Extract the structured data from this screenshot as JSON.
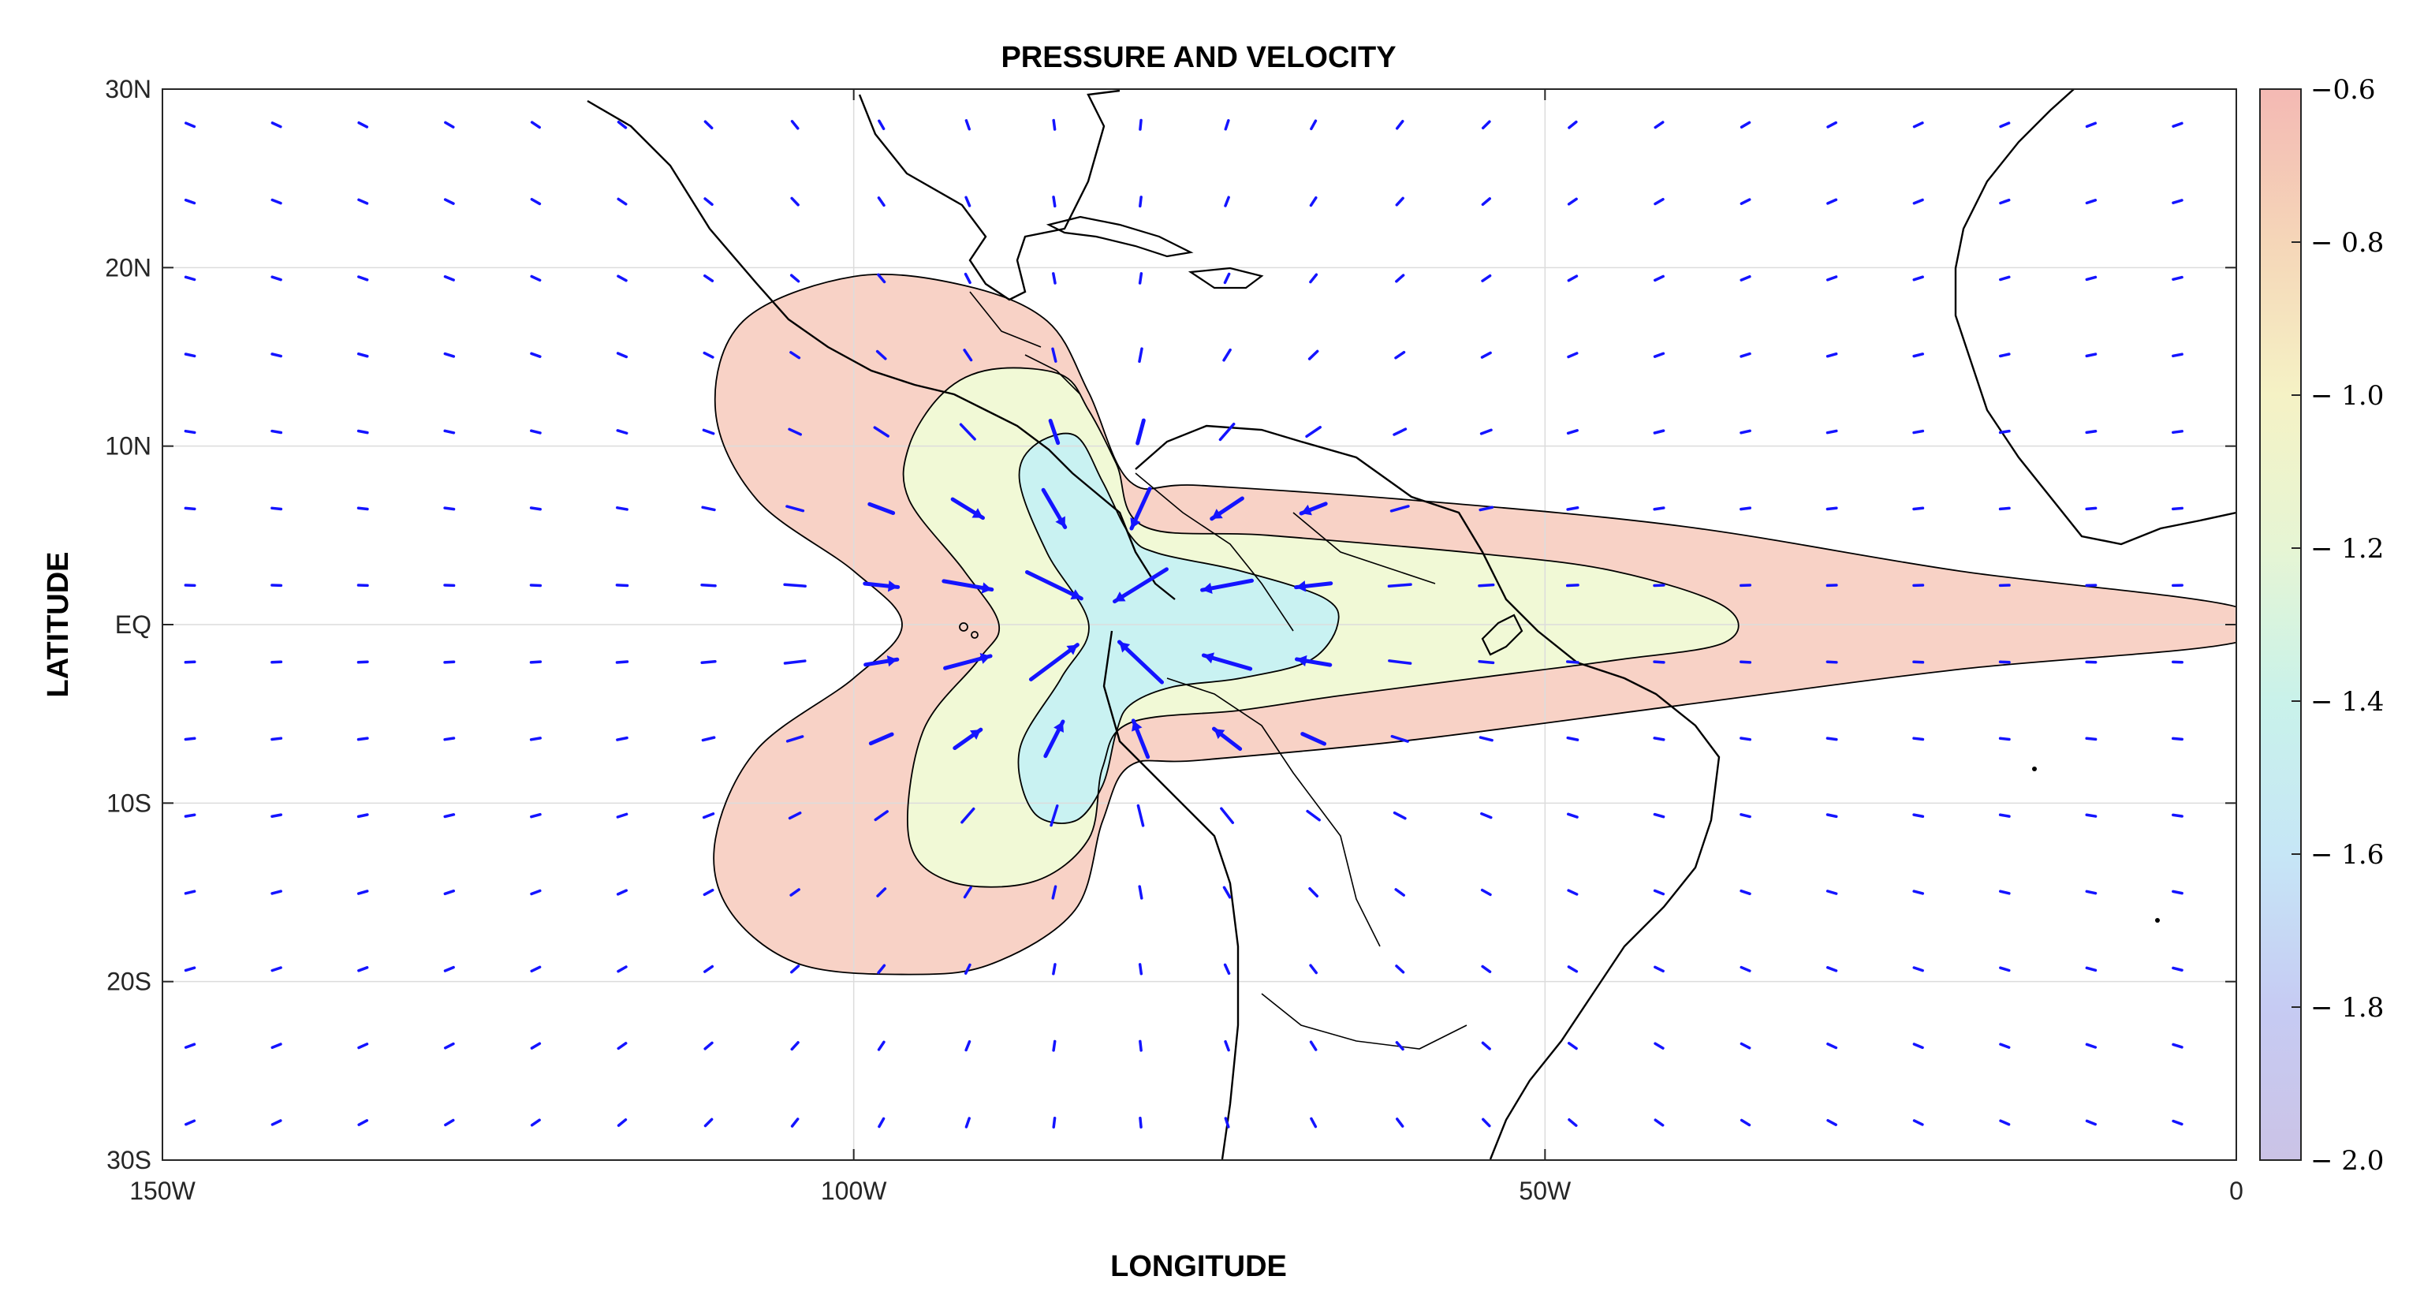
{
  "chart_data": {
    "type": "contour",
    "title": "PRESSURE AND VELOCITY",
    "xlabel": "LONGITUDE",
    "ylabel": "LATITUDE",
    "xlim": [
      -150,
      0
    ],
    "ylim": [
      -30,
      30
    ],
    "grid": true,
    "x_ticks": [
      {
        "value": -150,
        "label": "150W"
      },
      {
        "value": -100,
        "label": "100W"
      },
      {
        "value": -50,
        "label": "50W"
      },
      {
        "value": 0,
        "label": "0"
      }
    ],
    "y_ticks": [
      {
        "value": 30,
        "label": "30N"
      },
      {
        "value": 20,
        "label": "20N"
      },
      {
        "value": 10,
        "label": "10N"
      },
      {
        "value": 0,
        "label": "EQ"
      },
      {
        "value": -10,
        "label": "10S"
      },
      {
        "value": -20,
        "label": "20S"
      },
      {
        "value": -30,
        "label": "30S"
      }
    ],
    "colorbar": {
      "range": [
        -2.0,
        -0.6
      ],
      "ticks": [
        {
          "value": -0.6,
          "label": "−0.6"
        },
        {
          "value": -0.8,
          "label": "− 0.8"
        },
        {
          "value": -1.0,
          "label": "− 1.0"
        },
        {
          "value": -1.2,
          "label": "− 1.2"
        },
        {
          "value": -1.4,
          "label": "− 1.4"
        },
        {
          "value": -1.6,
          "label": "− 1.6"
        },
        {
          "value": -1.8,
          "label": "− 1.8"
        },
        {
          "value": -2.0,
          "label": "− 2.0"
        }
      ],
      "colors": [
        "#f4b9b4",
        "#f5d6b8",
        "#f5f2c5",
        "#e6f5d4",
        "#c9f2ea",
        "#c6e6f6",
        "#c6cbf3",
        "#cbc3e6"
      ]
    },
    "contours": [
      {
        "level": -0.9,
        "fill": "#f8d2c6",
        "polygon": [
          [
            -108,
            17
          ],
          [
            -100,
            19.5
          ],
          [
            -92,
            19
          ],
          [
            -86,
            17
          ],
          [
            -83,
            13
          ],
          [
            -80,
            8
          ],
          [
            -75,
            7.8
          ],
          [
            -60,
            7
          ],
          [
            -40,
            5.5
          ],
          [
            -20,
            3
          ],
          [
            0,
            1
          ],
          [
            0,
            -1
          ],
          [
            -20,
            -2.5
          ],
          [
            -40,
            -4.5
          ],
          [
            -60,
            -6.5
          ],
          [
            -75,
            -7.6
          ],
          [
            -80,
            -7.9
          ],
          [
            -82,
            -11
          ],
          [
            -84,
            -16
          ],
          [
            -90,
            -19
          ],
          [
            -96,
            -19.6
          ],
          [
            -104,
            -19
          ],
          [
            -109,
            -16
          ],
          [
            -110,
            -12
          ],
          [
            -107,
            -7
          ],
          [
            -100,
            -3
          ],
          [
            -96.5,
            0
          ],
          [
            -100,
            3
          ],
          [
            -107,
            7
          ],
          [
            -110,
            12
          ]
        ]
      },
      {
        "level": -1.2,
        "fill": "#f1f9d6",
        "polygon": [
          [
            -93.5,
            13
          ],
          [
            -90,
            14.3
          ],
          [
            -85,
            14
          ],
          [
            -83,
            12
          ],
          [
            -81,
            9
          ],
          [
            -79,
            5.5
          ],
          [
            -70,
            5
          ],
          [
            -55,
            4
          ],
          [
            -45,
            3
          ],
          [
            -37,
            1
          ],
          [
            -37,
            -1
          ],
          [
            -45,
            -2
          ],
          [
            -55,
            -3
          ],
          [
            -65,
            -4
          ],
          [
            -72,
            -4.8
          ],
          [
            -80,
            -5.5
          ],
          [
            -82,
            -8
          ],
          [
            -83,
            -12
          ],
          [
            -87,
            -14.4
          ],
          [
            -93,
            -14.4
          ],
          [
            -96,
            -12
          ],
          [
            -95,
            -6
          ],
          [
            -91,
            -2
          ],
          [
            -89.5,
            0
          ],
          [
            -92,
            3
          ],
          [
            -96,
            7
          ],
          [
            -96,
            10
          ]
        ]
      },
      {
        "level": -1.5,
        "fill": "#c9f2f2",
        "polygon": [
          [
            -87,
            10
          ],
          [
            -84,
            10.6
          ],
          [
            -82,
            8
          ],
          [
            -80,
            5
          ],
          [
            -78,
            4
          ],
          [
            -72,
            3
          ],
          [
            -66,
            1.5
          ],
          [
            -65,
            0
          ],
          [
            -67,
            -2
          ],
          [
            -72,
            -3
          ],
          [
            -77,
            -3.5
          ],
          [
            -80,
            -4.5
          ],
          [
            -81,
            -6
          ],
          [
            -82,
            -9
          ],
          [
            -84,
            -11
          ],
          [
            -87,
            -10.5
          ],
          [
            -88,
            -7
          ],
          [
            -85,
            -3
          ],
          [
            -83,
            0
          ],
          [
            -86,
            4
          ],
          [
            -88,
            8
          ]
        ]
      }
    ],
    "vector_field": {
      "lon_start": -148,
      "lon_step": 6.25,
      "lon_count": 24,
      "lat_start": 28,
      "lat_step": 4.3,
      "lat_count": 14,
      "max_speed": 1.0,
      "center": [
        -82,
        0.5
      ],
      "units": "m/s"
    }
  }
}
